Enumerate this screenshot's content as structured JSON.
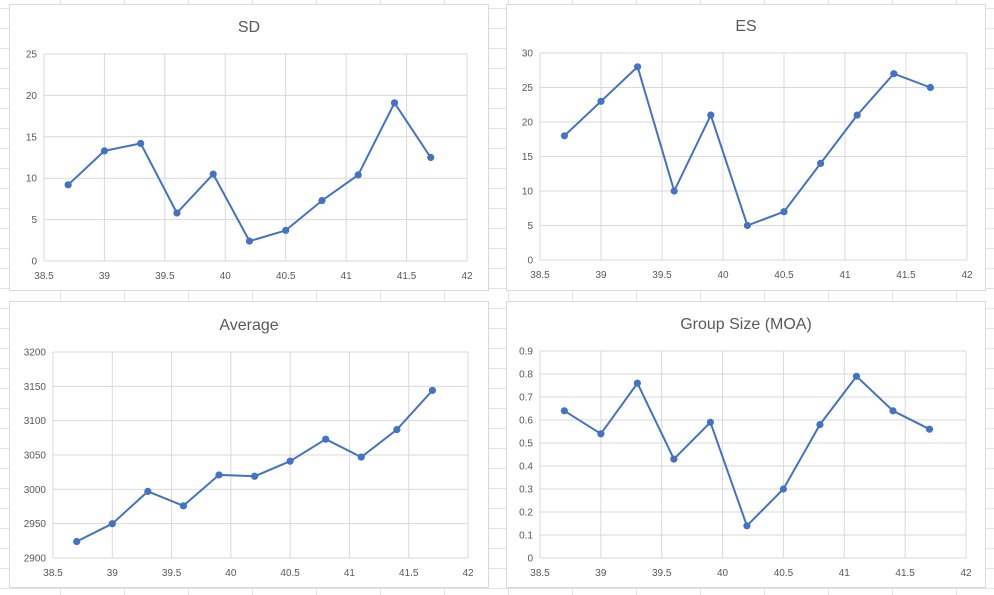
{
  "colors": {
    "series": "#4472c4",
    "grid": "#d9d9d9",
    "text": "#595959"
  },
  "chart_data": [
    {
      "type": "scatter",
      "title": "SD",
      "x": [
        38.7,
        39.0,
        39.3,
        39.6,
        39.9,
        40.2,
        40.5,
        40.8,
        41.1,
        41.4,
        41.7
      ],
      "series": [
        {
          "values": [
            9.2,
            13.3,
            14.2,
            5.8,
            10.5,
            2.4,
            3.7,
            7.3,
            10.4,
            19.1,
            12.5
          ]
        }
      ],
      "xlim": [
        38.5,
        42
      ],
      "xstep": 0.5,
      "ylim": [
        0,
        25
      ],
      "ystep": 5,
      "xticks": [
        "38.5",
        "39",
        "39.5",
        "40",
        "40.5",
        "41",
        "41.5",
        "42"
      ],
      "yticks": [
        "0",
        "5",
        "10",
        "15",
        "20",
        "25"
      ],
      "grid": true,
      "lines": true,
      "markers": true
    },
    {
      "type": "scatter",
      "title": "ES",
      "x": [
        38.7,
        39.0,
        39.3,
        39.6,
        39.9,
        40.2,
        40.5,
        40.8,
        41.1,
        41.4,
        41.7
      ],
      "series": [
        {
          "values": [
            18,
            23,
            28,
            10,
            21,
            5,
            7,
            14,
            21,
            27,
            25
          ]
        }
      ],
      "xlim": [
        38.5,
        42
      ],
      "xstep": 0.5,
      "ylim": [
        0,
        30
      ],
      "ystep": 5,
      "xticks": [
        "38.5",
        "39",
        "39.5",
        "40",
        "40.5",
        "41",
        "41.5",
        "42"
      ],
      "yticks": [
        "0",
        "5",
        "10",
        "15",
        "20",
        "25",
        "30"
      ],
      "grid": true,
      "lines": true,
      "markers": true
    },
    {
      "type": "scatter",
      "title": "Average",
      "x": [
        38.7,
        39.0,
        39.3,
        39.6,
        39.9,
        40.2,
        40.5,
        40.8,
        41.1,
        41.4,
        41.7
      ],
      "series": [
        {
          "values": [
            2924,
            2950,
            2997,
            2976,
            3021,
            3019,
            3041,
            3073,
            3047,
            3087,
            3144
          ]
        }
      ],
      "xlim": [
        38.5,
        42
      ],
      "xstep": 0.5,
      "ylim": [
        2900,
        3200
      ],
      "ystep": 50,
      "xticks": [
        "38.5",
        "39",
        "39.5",
        "40",
        "40.5",
        "41",
        "41.5",
        "42"
      ],
      "yticks": [
        "2900",
        "2950",
        "3000",
        "3050",
        "3100",
        "3150",
        "3200"
      ],
      "grid": true,
      "lines": true,
      "markers": true
    },
    {
      "type": "scatter",
      "title": "Group Size (MOA)",
      "x": [
        38.7,
        39.0,
        39.3,
        39.6,
        39.9,
        40.2,
        40.5,
        40.8,
        41.1,
        41.4,
        41.7
      ],
      "series": [
        {
          "values": [
            0.64,
            0.54,
            0.76,
            0.43,
            0.59,
            0.14,
            0.3,
            0.58,
            0.79,
            0.64,
            0.56
          ]
        }
      ],
      "xlim": [
        38.5,
        42
      ],
      "xstep": 0.5,
      "ylim": [
        0,
        0.9
      ],
      "ystep": 0.1,
      "xticks": [
        "38.5",
        "39",
        "39.5",
        "40",
        "40.5",
        "41",
        "41.5",
        "42"
      ],
      "yticks": [
        "0",
        "0.1",
        "0.2",
        "0.3",
        "0.4",
        "0.5",
        "0.6",
        "0.7",
        "0.8",
        "0.9"
      ],
      "grid": true,
      "lines": true,
      "markers": true
    }
  ]
}
